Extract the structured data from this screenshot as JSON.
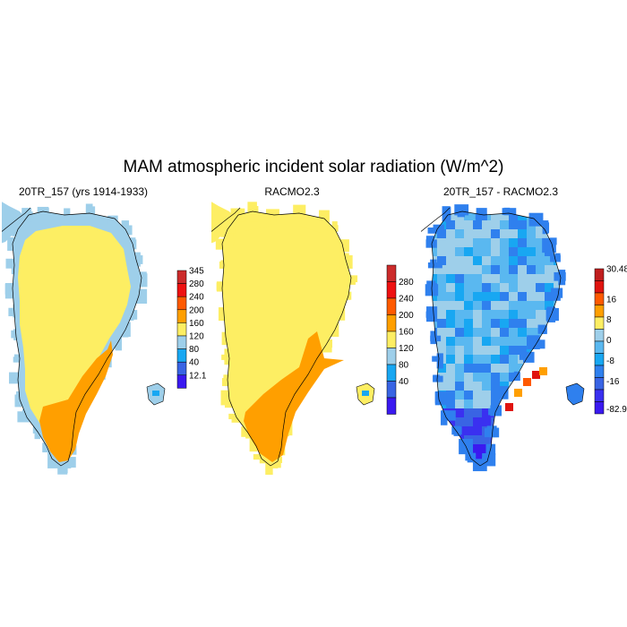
{
  "title": "MAM atmospheric incident solar radiation (W/m^2)",
  "colors": {
    "sea_ice_blue": "#9ecfea",
    "yellow": "#fdee63",
    "orange": "#ff9f00",
    "outline": "#000000"
  },
  "chart_data": [
    {
      "type": "heatmap",
      "title": "20TR_157 (yrs 1914-1933)",
      "colorbar": {
        "labels": [
          "345",
          "280",
          "240",
          "200",
          "160",
          "120",
          "80",
          "40",
          "12.1"
        ],
        "colors": [
          "#cc2b2b",
          "#ee1111",
          "#ff5a00",
          "#ff9f00",
          "#fdee63",
          "#9ecfea",
          "#18a7f2",
          "#3964e4",
          "#3a19f0"
        ]
      },
      "dominant_value_range": [
        160,
        240
      ]
    },
    {
      "type": "heatmap",
      "title": "RACMO2.3",
      "colorbar": {
        "labels": [
          "280",
          "240",
          "200",
          "160",
          "120",
          "80",
          "40"
        ],
        "colors": [
          "#cc2b2b",
          "#ee1111",
          "#ff5a00",
          "#ff9f00",
          "#fdee63",
          "#9ecfea",
          "#18a7f2",
          "#3964e4",
          "#3a19f0"
        ]
      },
      "dominant_value_range": [
        160,
        240
      ]
    },
    {
      "type": "heatmap",
      "title": "20TR_157 - RACMO2.3",
      "colorbar": {
        "labels": [
          "30.48",
          "16",
          "8",
          "0",
          "-8",
          "-16",
          "-82.9"
        ],
        "colors": [
          "#c01e1e",
          "#e0140f",
          "#ff5a00",
          "#ff9f00",
          "#fdee63",
          "#9ecfea",
          "#5ab8f0",
          "#18a7f2",
          "#2f80ee",
          "#3964e4",
          "#3a30f0",
          "#3a19f0"
        ]
      },
      "dominant_value_range": [
        -16,
        0
      ]
    }
  ]
}
